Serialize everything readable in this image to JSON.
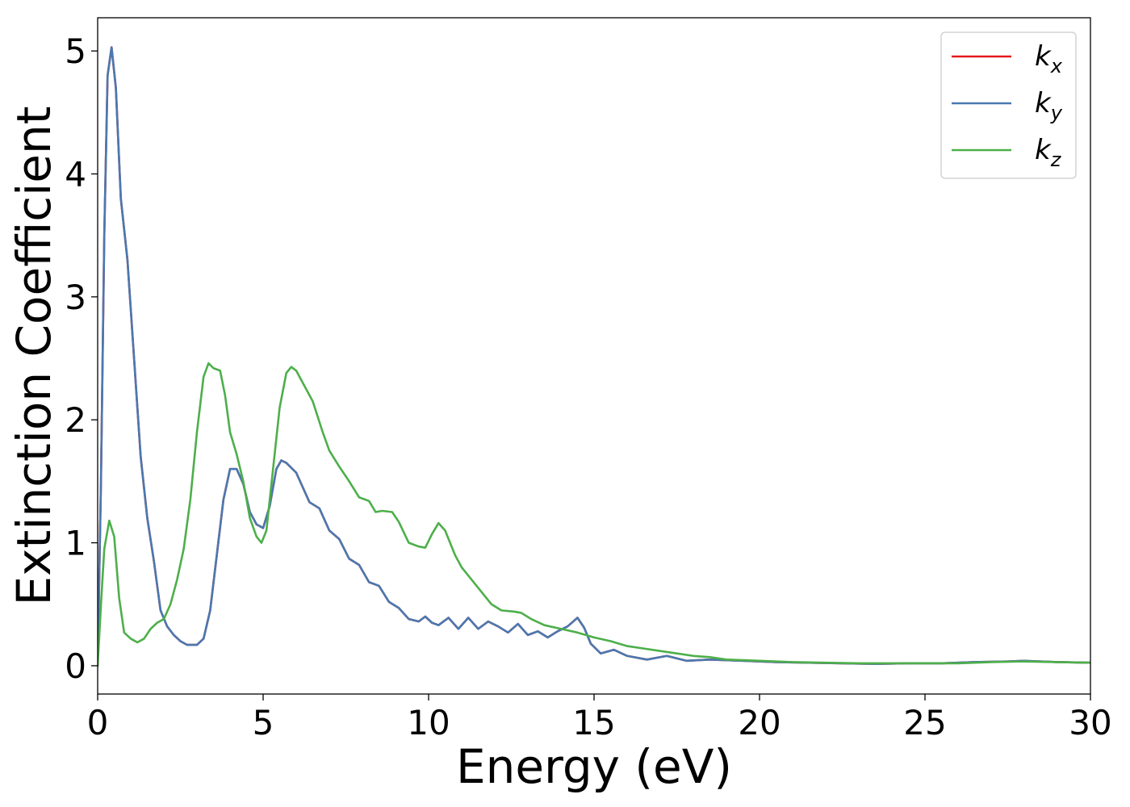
{
  "chart_data": {
    "type": "line",
    "title": "",
    "xlabel": "Energy (eV)",
    "ylabel": "Extinction Coefficient",
    "xlim": [
      0,
      30
    ],
    "ylim": [
      -0.23,
      5.27
    ],
    "xticks": [
      0,
      5,
      10,
      15,
      20,
      25,
      30
    ],
    "xtick_labels": [
      "0",
      "5",
      "10",
      "15",
      "20",
      "25",
      "30"
    ],
    "yticks": [
      0,
      1,
      2,
      3,
      4,
      5
    ],
    "ytick_labels": [
      "0",
      "1",
      "2",
      "3",
      "4",
      "5"
    ],
    "grid": false,
    "legend_position": "top-right",
    "series": [
      {
        "name": "k_x",
        "legend_base": "k",
        "legend_sub": "x",
        "color": "#e41a1c",
        "points": [
          [
            0,
            0
          ],
          [
            0.1,
            1.5
          ],
          [
            0.2,
            3.5
          ],
          [
            0.3,
            4.8
          ],
          [
            0.42,
            5.03
          ],
          [
            0.55,
            4.7
          ],
          [
            0.7,
            3.8
          ],
          [
            0.9,
            3.3
          ],
          [
            1.1,
            2.5
          ],
          [
            1.3,
            1.7
          ],
          [
            1.5,
            1.2
          ],
          [
            1.7,
            0.85
          ],
          [
            1.9,
            0.45
          ],
          [
            2.1,
            0.32
          ],
          [
            2.3,
            0.25
          ],
          [
            2.5,
            0.2
          ],
          [
            2.7,
            0.17
          ],
          [
            3.0,
            0.17
          ],
          [
            3.2,
            0.22
          ],
          [
            3.4,
            0.45
          ],
          [
            3.6,
            0.9
          ],
          [
            3.8,
            1.35
          ],
          [
            4.0,
            1.6
          ],
          [
            4.2,
            1.6
          ],
          [
            4.4,
            1.48
          ],
          [
            4.6,
            1.25
          ],
          [
            4.8,
            1.15
          ],
          [
            5.0,
            1.12
          ],
          [
            5.2,
            1.3
          ],
          [
            5.4,
            1.6
          ],
          [
            5.55,
            1.67
          ],
          [
            5.7,
            1.65
          ],
          [
            6.0,
            1.57
          ],
          [
            6.2,
            1.45
          ],
          [
            6.4,
            1.33
          ],
          [
            6.7,
            1.28
          ],
          [
            7.0,
            1.1
          ],
          [
            7.3,
            1.03
          ],
          [
            7.6,
            0.87
          ],
          [
            7.9,
            0.82
          ],
          [
            8.2,
            0.68
          ],
          [
            8.5,
            0.65
          ],
          [
            8.8,
            0.52
          ],
          [
            9.1,
            0.47
          ],
          [
            9.4,
            0.38
          ],
          [
            9.7,
            0.36
          ],
          [
            9.9,
            0.4
          ],
          [
            10.1,
            0.35
          ],
          [
            10.3,
            0.33
          ],
          [
            10.6,
            0.39
          ],
          [
            10.9,
            0.3
          ],
          [
            11.2,
            0.39
          ],
          [
            11.5,
            0.3
          ],
          [
            11.8,
            0.36
          ],
          [
            12.1,
            0.32
          ],
          [
            12.4,
            0.27
          ],
          [
            12.7,
            0.34
          ],
          [
            13.0,
            0.25
          ],
          [
            13.3,
            0.28
          ],
          [
            13.6,
            0.23
          ],
          [
            13.9,
            0.28
          ],
          [
            14.2,
            0.32
          ],
          [
            14.5,
            0.39
          ],
          [
            14.7,
            0.31
          ],
          [
            14.9,
            0.18
          ],
          [
            15.2,
            0.1
          ],
          [
            15.6,
            0.13
          ],
          [
            16.0,
            0.08
          ],
          [
            16.6,
            0.05
          ],
          [
            17.2,
            0.08
          ],
          [
            17.8,
            0.04
          ],
          [
            18.5,
            0.05
          ],
          [
            19.5,
            0.04
          ],
          [
            20.5,
            0.03
          ],
          [
            21.5,
            0.025
          ],
          [
            22.5,
            0.02
          ],
          [
            23.5,
            0.015
          ],
          [
            24.5,
            0.02
          ],
          [
            25.5,
            0.02
          ],
          [
            26.5,
            0.03
          ],
          [
            27.5,
            0.035
          ],
          [
            28.0,
            0.04
          ],
          [
            29.0,
            0.03
          ],
          [
            30,
            0.025
          ]
        ]
      },
      {
        "name": "k_y",
        "legend_base": "k",
        "legend_sub": "y",
        "color": "#4a78b0",
        "points": [
          [
            0,
            0
          ],
          [
            0.1,
            1.5
          ],
          [
            0.2,
            3.5
          ],
          [
            0.3,
            4.8
          ],
          [
            0.42,
            5.03
          ],
          [
            0.55,
            4.7
          ],
          [
            0.7,
            3.8
          ],
          [
            0.9,
            3.3
          ],
          [
            1.1,
            2.5
          ],
          [
            1.3,
            1.7
          ],
          [
            1.5,
            1.2
          ],
          [
            1.7,
            0.85
          ],
          [
            1.9,
            0.45
          ],
          [
            2.1,
            0.32
          ],
          [
            2.3,
            0.25
          ],
          [
            2.5,
            0.2
          ],
          [
            2.7,
            0.17
          ],
          [
            3.0,
            0.17
          ],
          [
            3.2,
            0.22
          ],
          [
            3.4,
            0.45
          ],
          [
            3.6,
            0.9
          ],
          [
            3.8,
            1.35
          ],
          [
            4.0,
            1.6
          ],
          [
            4.2,
            1.6
          ],
          [
            4.4,
            1.48
          ],
          [
            4.6,
            1.25
          ],
          [
            4.8,
            1.15
          ],
          [
            5.0,
            1.12
          ],
          [
            5.2,
            1.3
          ],
          [
            5.4,
            1.6
          ],
          [
            5.55,
            1.67
          ],
          [
            5.7,
            1.65
          ],
          [
            6.0,
            1.57
          ],
          [
            6.2,
            1.45
          ],
          [
            6.4,
            1.33
          ],
          [
            6.7,
            1.28
          ],
          [
            7.0,
            1.1
          ],
          [
            7.3,
            1.03
          ],
          [
            7.6,
            0.87
          ],
          [
            7.9,
            0.82
          ],
          [
            8.2,
            0.68
          ],
          [
            8.5,
            0.65
          ],
          [
            8.8,
            0.52
          ],
          [
            9.1,
            0.47
          ],
          [
            9.4,
            0.38
          ],
          [
            9.7,
            0.36
          ],
          [
            9.9,
            0.4
          ],
          [
            10.1,
            0.35
          ],
          [
            10.3,
            0.33
          ],
          [
            10.6,
            0.39
          ],
          [
            10.9,
            0.3
          ],
          [
            11.2,
            0.39
          ],
          [
            11.5,
            0.3
          ],
          [
            11.8,
            0.36
          ],
          [
            12.1,
            0.32
          ],
          [
            12.4,
            0.27
          ],
          [
            12.7,
            0.34
          ],
          [
            13.0,
            0.25
          ],
          [
            13.3,
            0.28
          ],
          [
            13.6,
            0.23
          ],
          [
            13.9,
            0.28
          ],
          [
            14.2,
            0.32
          ],
          [
            14.5,
            0.39
          ],
          [
            14.7,
            0.31
          ],
          [
            14.9,
            0.18
          ],
          [
            15.2,
            0.1
          ],
          [
            15.6,
            0.13
          ],
          [
            16.0,
            0.08
          ],
          [
            16.6,
            0.05
          ],
          [
            17.2,
            0.08
          ],
          [
            17.8,
            0.04
          ],
          [
            18.5,
            0.05
          ],
          [
            19.5,
            0.04
          ],
          [
            20.5,
            0.03
          ],
          [
            21.5,
            0.025
          ],
          [
            22.5,
            0.02
          ],
          [
            23.5,
            0.015
          ],
          [
            24.5,
            0.02
          ],
          [
            25.5,
            0.02
          ],
          [
            26.5,
            0.03
          ],
          [
            27.5,
            0.035
          ],
          [
            28.0,
            0.04
          ],
          [
            29.0,
            0.03
          ],
          [
            30,
            0.025
          ]
        ]
      },
      {
        "name": "k_z",
        "legend_base": "k",
        "legend_sub": "z",
        "color": "#4daf4a",
        "points": [
          [
            0,
            0
          ],
          [
            0.1,
            0.5
          ],
          [
            0.2,
            0.95
          ],
          [
            0.35,
            1.18
          ],
          [
            0.5,
            1.05
          ],
          [
            0.65,
            0.55
          ],
          [
            0.8,
            0.27
          ],
          [
            1.0,
            0.22
          ],
          [
            1.2,
            0.19
          ],
          [
            1.4,
            0.22
          ],
          [
            1.6,
            0.3
          ],
          [
            1.8,
            0.35
          ],
          [
            2.0,
            0.38
          ],
          [
            2.2,
            0.5
          ],
          [
            2.4,
            0.7
          ],
          [
            2.6,
            0.95
          ],
          [
            2.8,
            1.35
          ],
          [
            3.0,
            1.9
          ],
          [
            3.2,
            2.35
          ],
          [
            3.35,
            2.46
          ],
          [
            3.5,
            2.42
          ],
          [
            3.7,
            2.4
          ],
          [
            3.85,
            2.2
          ],
          [
            4.0,
            1.9
          ],
          [
            4.2,
            1.72
          ],
          [
            4.4,
            1.5
          ],
          [
            4.6,
            1.2
          ],
          [
            4.8,
            1.05
          ],
          [
            4.95,
            1.0
          ],
          [
            5.1,
            1.1
          ],
          [
            5.3,
            1.6
          ],
          [
            5.5,
            2.1
          ],
          [
            5.7,
            2.38
          ],
          [
            5.85,
            2.43
          ],
          [
            6.0,
            2.4
          ],
          [
            6.2,
            2.3
          ],
          [
            6.5,
            2.15
          ],
          [
            6.8,
            1.9
          ],
          [
            7.0,
            1.75
          ],
          [
            7.3,
            1.62
          ],
          [
            7.6,
            1.5
          ],
          [
            7.9,
            1.37
          ],
          [
            8.2,
            1.34
          ],
          [
            8.4,
            1.25
          ],
          [
            8.6,
            1.26
          ],
          [
            8.9,
            1.25
          ],
          [
            9.1,
            1.17
          ],
          [
            9.4,
            1.0
          ],
          [
            9.7,
            0.97
          ],
          [
            9.9,
            0.96
          ],
          [
            10.1,
            1.07
          ],
          [
            10.3,
            1.16
          ],
          [
            10.5,
            1.1
          ],
          [
            10.8,
            0.9
          ],
          [
            11.0,
            0.8
          ],
          [
            11.3,
            0.7
          ],
          [
            11.6,
            0.6
          ],
          [
            11.9,
            0.5
          ],
          [
            12.2,
            0.45
          ],
          [
            12.6,
            0.44
          ],
          [
            12.8,
            0.43
          ],
          [
            13.1,
            0.38
          ],
          [
            13.5,
            0.33
          ],
          [
            14.0,
            0.3
          ],
          [
            14.5,
            0.27
          ],
          [
            15.0,
            0.23
          ],
          [
            15.5,
            0.2
          ],
          [
            16.0,
            0.16
          ],
          [
            16.5,
            0.14
          ],
          [
            17.0,
            0.12
          ],
          [
            17.5,
            0.1
          ],
          [
            18.0,
            0.08
          ],
          [
            18.5,
            0.07
          ],
          [
            19.0,
            0.05
          ],
          [
            19.5,
            0.045
          ],
          [
            20.0,
            0.04
          ],
          [
            21.0,
            0.03
          ],
          [
            22.0,
            0.025
          ],
          [
            23.0,
            0.02
          ],
          [
            24.0,
            0.02
          ],
          [
            25.0,
            0.02
          ],
          [
            26.0,
            0.02
          ],
          [
            27.0,
            0.03
          ],
          [
            28.0,
            0.035
          ],
          [
            29.0,
            0.03
          ],
          [
            30,
            0.025
          ]
        ]
      }
    ]
  }
}
